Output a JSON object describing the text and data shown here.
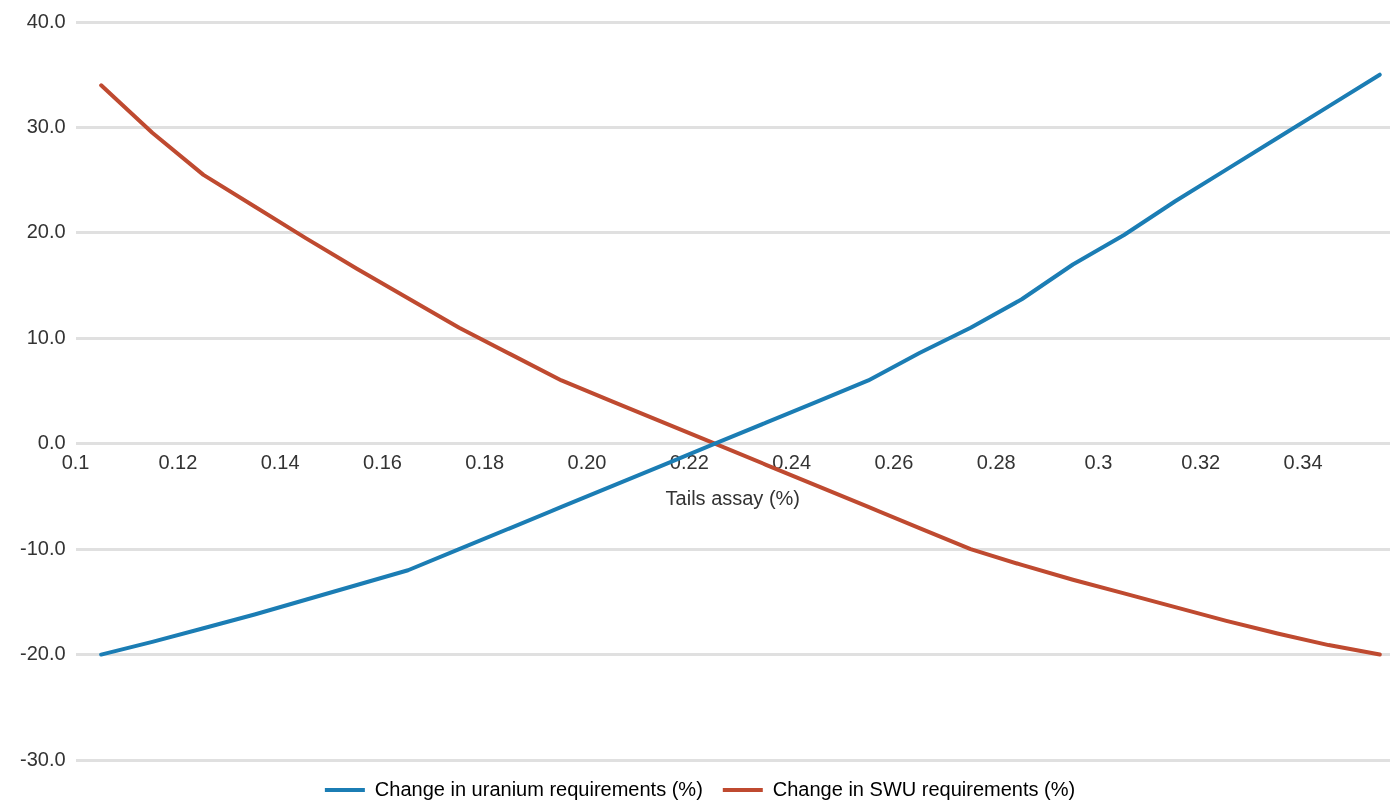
{
  "chart_data": {
    "type": "line",
    "xlabel": "Tails assay (%)",
    "xlim": [
      0.1,
      0.357
    ],
    "xticks": [
      0.1,
      0.12,
      0.14,
      0.16,
      0.18,
      {
        "value": 0.2,
        "label": "0.20"
      },
      0.22,
      0.24,
      0.26,
      0.28,
      0.3,
      0.32,
      0.34
    ],
    "ylim": [
      -30,
      40
    ],
    "yticks": [
      {
        "value": -30,
        "label": "-30.0"
      },
      {
        "value": -20,
        "label": "-20.0"
      },
      {
        "value": -10,
        "label": "-10.0"
      },
      {
        "value": 0,
        "label": "0.0"
      },
      {
        "value": 10,
        "label": "10.0"
      },
      {
        "value": 20,
        "label": "20.0"
      },
      {
        "value": 30,
        "label": "30.0"
      },
      {
        "value": 40,
        "label": "40.0"
      }
    ],
    "x": [
      0.105,
      0.115,
      0.125,
      0.135,
      0.145,
      0.155,
      0.165,
      0.175,
      0.185,
      0.195,
      0.205,
      0.215,
      0.225,
      0.235,
      0.245,
      0.255,
      0.265,
      0.275,
      0.285,
      0.295,
      0.305,
      0.315,
      0.325,
      0.335,
      0.345,
      0.355
    ],
    "series": [
      {
        "name": "Change in uranium requirements (%)",
        "color": "#1b7db4",
        "values": [
          -20,
          -18.8,
          -17.5,
          -16.2,
          -14.8,
          -13.4,
          -12,
          -10,
          -8,
          -6,
          -4,
          -2,
          0,
          2,
          4,
          6,
          8.6,
          11,
          13.7,
          17,
          19.8,
          23,
          26,
          29,
          32,
          35
        ]
      },
      {
        "name": "Change in SWU requirements (%)",
        "color": "#bf4a30",
        "values": [
          34,
          29.5,
          25.5,
          22.5,
          19.5,
          16.6,
          13.8,
          11,
          8.5,
          6,
          4,
          2,
          0,
          -2,
          -4,
          -6,
          -8,
          -10,
          -11.5,
          -12.9,
          -14.2,
          -15.5,
          -16.8,
          -18,
          -19.1,
          -20
        ]
      }
    ],
    "grid": "y",
    "legend": "bottom",
    "marker": "none",
    "line_style": "solid"
  }
}
